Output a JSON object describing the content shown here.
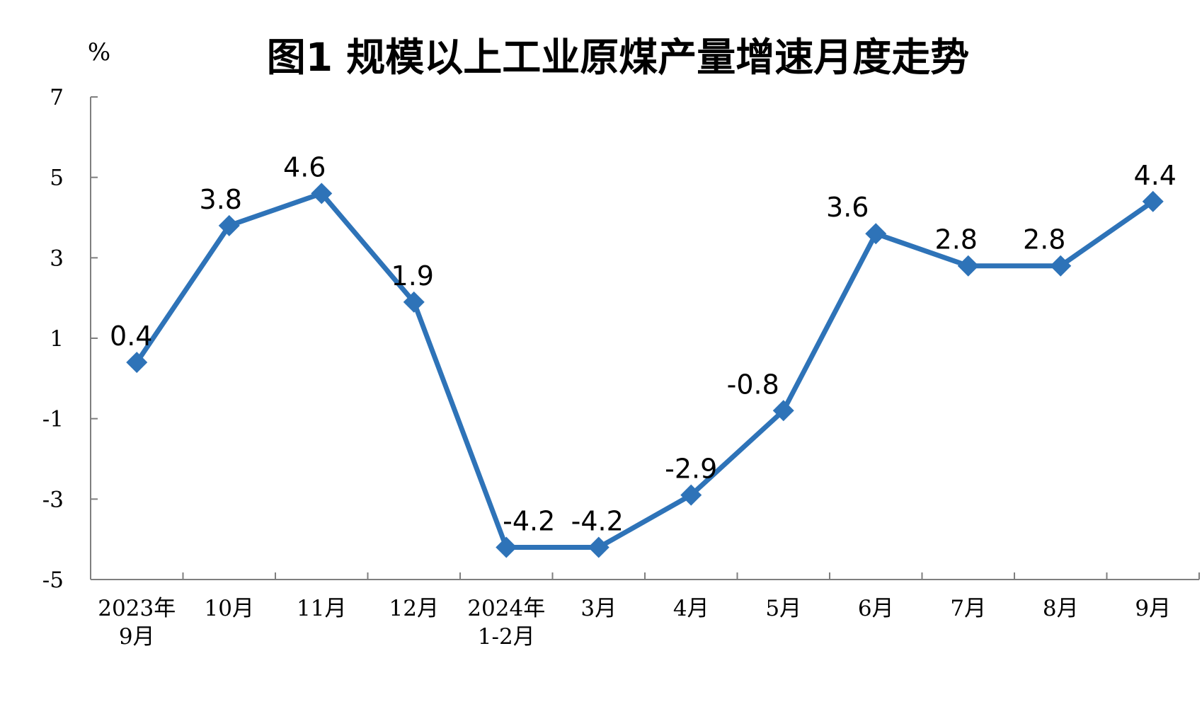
{
  "chart": {
    "title": "图1 规模以上工业原煤产量增速月度走势",
    "unit_label": "%"
  },
  "chart_data": {
    "type": "line",
    "title": "图1 规模以上工业原煤产量增速月度走势",
    "unit": "%",
    "categories": [
      "2023年\n9月",
      "10月",
      "11月",
      "12月",
      "2024年\n1-2月",
      "3月",
      "4月",
      "5月",
      "6月",
      "7月",
      "8月",
      "9月"
    ],
    "values": [
      0.4,
      3.8,
      4.6,
      1.9,
      -4.2,
      -4.2,
      -2.9,
      -0.8,
      3.6,
      2.8,
      2.8,
      4.4
    ],
    "point_labels": [
      "0.4",
      "3.8",
      "4.6",
      "1.9",
      "-4.2",
      "-4.2",
      "-2.9",
      "-0.8",
      "3.6",
      "2.8",
      "2.8",
      "4.4"
    ],
    "xlabel": "",
    "ylabel": "%",
    "yticks": [
      7,
      5,
      3,
      1,
      -1,
      -3,
      -5
    ],
    "ylim": [
      -5,
      7
    ],
    "grid": false,
    "legend": "none",
    "line_color": "#2E73B8",
    "marker": "diamond",
    "axis_color": "#7F7F7F",
    "text_color": "#000000",
    "background": "#FFFFFF",
    "label_dx": [
      -8,
      -12,
      -24,
      -2,
      32,
      -2,
      0,
      -43,
      -40,
      -17,
      -23,
      3
    ]
  }
}
